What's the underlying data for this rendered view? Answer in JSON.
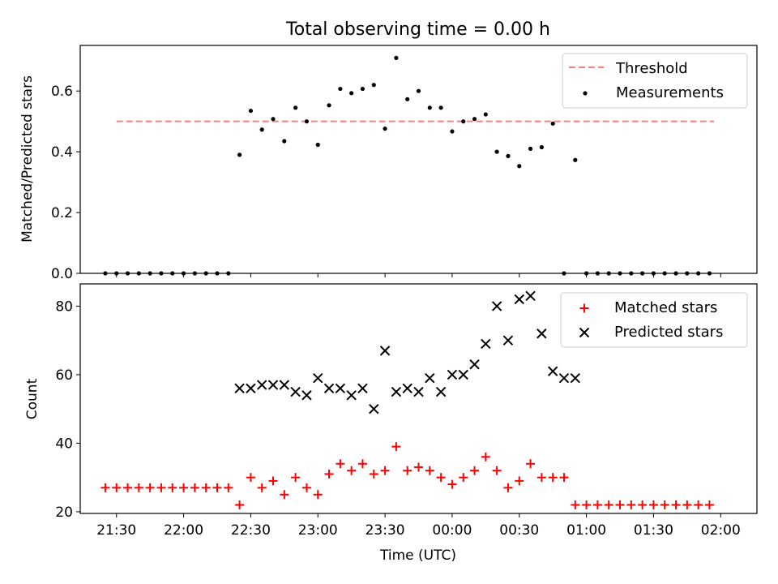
{
  "colors": {
    "threshold": "#ff7f7f",
    "measurements": "#000000",
    "matched": "#ff0000",
    "predicted": "#000000"
  },
  "chart_data": [
    {
      "type": "scatter",
      "title": "Total observing time = 0.00 h",
      "xlabel": "",
      "ylabel": "Matched/Predicted stars",
      "xlim": [
        21.23,
        26.27
      ],
      "ylim": [
        0.0,
        0.75
      ],
      "yticks": [
        0.0,
        0.2,
        0.4,
        0.6
      ],
      "yticklabels": [
        "0.0",
        "0.2",
        "0.4",
        "0.6"
      ],
      "grid": false,
      "legend": {
        "placement": "top-right",
        "entries": [
          "Threshold",
          "Measurements"
        ]
      },
      "series": [
        {
          "name": "Threshold",
          "kind": "dashed-line",
          "x": [
            21.5,
            25.95
          ],
          "y": [
            0.5,
            0.5
          ]
        },
        {
          "name": "Measurements",
          "kind": "dot",
          "x": [
            21.4167,
            21.5,
            21.5833,
            21.6667,
            21.75,
            21.8333,
            21.9167,
            22.0,
            22.0833,
            22.1667,
            22.25,
            22.3333,
            22.4167,
            22.5,
            22.5833,
            22.6667,
            22.75,
            22.8333,
            22.9167,
            23.0,
            23.0833,
            23.1667,
            23.25,
            23.3333,
            23.4167,
            23.5,
            23.5833,
            23.6667,
            23.75,
            23.8333,
            23.9167,
            24.0,
            24.0833,
            24.1667,
            24.25,
            24.3333,
            24.4167,
            24.5,
            24.5833,
            24.6667,
            24.75,
            24.8333,
            24.9167,
            25.0,
            25.0833,
            25.1667,
            25.25,
            25.3333,
            25.4167,
            25.5,
            25.5833,
            25.6667,
            25.75,
            25.8333,
            25.9167
          ],
          "y": [
            0.0,
            0.0,
            0.0,
            0.0,
            0.0,
            0.0,
            0.0,
            0.0,
            0.0,
            0.0,
            0.0,
            0.0,
            0.39,
            0.535,
            0.473,
            0.508,
            0.435,
            0.545,
            0.5,
            0.423,
            0.553,
            0.607,
            0.593,
            0.607,
            0.62,
            0.476,
            0.709,
            0.573,
            0.6,
            0.545,
            0.545,
            0.467,
            0.5,
            0.508,
            0.523,
            0.4,
            0.386,
            0.353,
            0.41,
            0.415,
            0.493,
            0.0,
            0.373,
            0.0,
            0.0,
            0.0,
            0.0,
            0.0,
            0.0,
            0.0,
            0.0,
            0.0,
            0.0,
            0.0,
            0.0
          ]
        }
      ]
    },
    {
      "type": "scatter",
      "title": "",
      "xlabel": "Time (UTC)",
      "ylabel": "Count",
      "xlim": [
        21.23,
        26.27
      ],
      "ylim": [
        19.5,
        86.5
      ],
      "yticks": [
        20,
        40,
        60,
        80
      ],
      "yticklabels": [
        "20",
        "40",
        "60",
        "80"
      ],
      "xticks": [
        21.5,
        22.0,
        22.5,
        23.0,
        23.5,
        24.0,
        24.5,
        25.0,
        25.5,
        26.0
      ],
      "xticklabels": [
        "21:30",
        "22:00",
        "22:30",
        "23:00",
        "23:30",
        "00:00",
        "00:30",
        "01:00",
        "01:30",
        "02:00"
      ],
      "grid": false,
      "legend": {
        "placement": "top-right",
        "entries": [
          "Matched stars",
          "Predicted stars"
        ]
      },
      "series": [
        {
          "name": "Matched stars",
          "kind": "plus",
          "x": [
            21.4167,
            21.5,
            21.5833,
            21.6667,
            21.75,
            21.8333,
            21.9167,
            22.0,
            22.0833,
            22.1667,
            22.25,
            22.3333,
            22.4167,
            22.5,
            22.5833,
            22.6667,
            22.75,
            22.8333,
            22.9167,
            23.0,
            23.0833,
            23.1667,
            23.25,
            23.3333,
            23.4167,
            23.5,
            23.5833,
            23.6667,
            23.75,
            23.8333,
            23.9167,
            24.0,
            24.0833,
            24.1667,
            24.25,
            24.3333,
            24.4167,
            24.5,
            24.5833,
            24.6667,
            24.75,
            24.8333,
            24.9167,
            25.0,
            25.0833,
            25.1667,
            25.25,
            25.3333,
            25.4167,
            25.5,
            25.5833,
            25.6667,
            25.75,
            25.8333,
            25.9167
          ],
          "y": [
            27,
            27,
            27,
            27,
            27,
            27,
            27,
            27,
            27,
            27,
            27,
            27,
            22,
            30,
            27,
            29,
            25,
            30,
            27,
            25,
            31,
            34,
            32,
            34,
            31,
            32,
            39,
            32,
            33,
            32,
            30,
            28,
            30,
            32,
            36,
            32,
            27,
            29,
            34,
            30,
            30,
            30,
            22,
            22,
            22,
            22,
            22,
            22,
            22,
            22,
            22,
            22,
            22,
            22,
            22
          ]
        },
        {
          "name": "Predicted stars",
          "kind": "x",
          "x": [
            22.4167,
            22.5,
            22.5833,
            22.6667,
            22.75,
            22.8333,
            22.9167,
            23.0,
            23.0833,
            23.1667,
            23.25,
            23.3333,
            23.4167,
            23.5,
            23.5833,
            23.6667,
            23.75,
            23.8333,
            23.9167,
            24.0,
            24.0833,
            24.1667,
            24.25,
            24.3333,
            24.4167,
            24.5,
            24.5833,
            24.6667,
            24.75,
            24.8333,
            24.9167
          ],
          "y": [
            56,
            56,
            57,
            57,
            57,
            55,
            54,
            59,
            56,
            56,
            54,
            56,
            50,
            67,
            55,
            56,
            55,
            59,
            55,
            60,
            60,
            63,
            69,
            80,
            70,
            82,
            83,
            72,
            61,
            59,
            59
          ]
        }
      ]
    }
  ]
}
